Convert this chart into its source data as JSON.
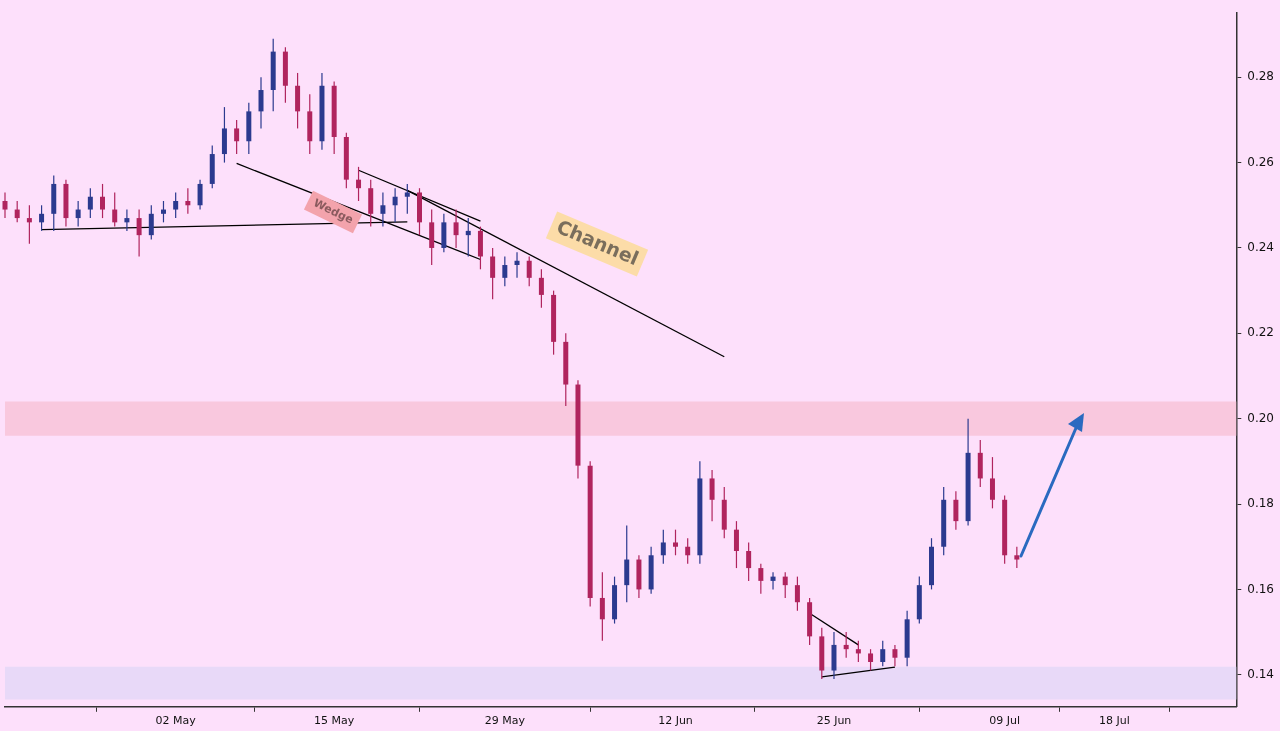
{
  "chart_data": {
    "type": "candlestick",
    "x": [
      "--04-18",
      "--04-19",
      "--04-20",
      "--04-21",
      "--04-22",
      "--04-23",
      "--04-24",
      "--04-25",
      "--04-26",
      "--04-27",
      "--04-28",
      "--04-29",
      "--04-30",
      "--05-01",
      "--05-02",
      "--05-03",
      "--05-04",
      "--05-05",
      "--05-06",
      "--05-07",
      "--05-08",
      "--05-09",
      "--05-10",
      "--05-11",
      "--05-12",
      "--05-13",
      "--05-14",
      "--05-15",
      "--05-16",
      "--05-17",
      "--05-18",
      "--05-19",
      "--05-20",
      "--05-21",
      "--05-22",
      "--05-23",
      "--05-24",
      "--05-25",
      "--05-26",
      "--05-27",
      "--05-28",
      "--05-29",
      "--05-30",
      "--05-31",
      "--06-01",
      "--06-02",
      "--06-03",
      "--06-04",
      "--06-05",
      "--06-06",
      "--06-07",
      "--06-08",
      "--06-09",
      "--06-10",
      "--06-11",
      "--06-12",
      "--06-13",
      "--06-14",
      "--06-15",
      "--06-16",
      "--06-17",
      "--06-18",
      "--06-19",
      "--06-20",
      "--06-21",
      "--06-22",
      "--06-23",
      "--06-24",
      "--06-25",
      "--06-26",
      "--06-27",
      "--06-28",
      "--06-29",
      "--06-30",
      "--07-01",
      "--07-02",
      "--07-03",
      "--07-04",
      "--07-05",
      "--07-06",
      "--07-07",
      "--07-08",
      "--07-09",
      "--07-10"
    ],
    "ohlc": [
      [
        0.251,
        0.253,
        0.247,
        0.249
      ],
      [
        0.249,
        0.251,
        0.246,
        0.247
      ],
      [
        0.247,
        0.25,
        0.241,
        0.246
      ],
      [
        0.246,
        0.25,
        0.244,
        0.248
      ],
      [
        0.248,
        0.257,
        0.244,
        0.255
      ],
      [
        0.255,
        0.256,
        0.245,
        0.247
      ],
      [
        0.247,
        0.251,
        0.245,
        0.249
      ],
      [
        0.249,
        0.254,
        0.247,
        0.252
      ],
      [
        0.252,
        0.255,
        0.247,
        0.249
      ],
      [
        0.249,
        0.253,
        0.245,
        0.246
      ],
      [
        0.246,
        0.249,
        0.244,
        0.247
      ],
      [
        0.247,
        0.249,
        0.238,
        0.243
      ],
      [
        0.243,
        0.25,
        0.242,
        0.248
      ],
      [
        0.248,
        0.251,
        0.246,
        0.249
      ],
      [
        0.249,
        0.253,
        0.247,
        0.251
      ],
      [
        0.251,
        0.254,
        0.248,
        0.25
      ],
      [
        0.25,
        0.256,
        0.249,
        0.255
      ],
      [
        0.255,
        0.264,
        0.254,
        0.262
      ],
      [
        0.262,
        0.273,
        0.26,
        0.268
      ],
      [
        0.268,
        0.27,
        0.262,
        0.265
      ],
      [
        0.265,
        0.274,
        0.262,
        0.272
      ],
      [
        0.272,
        0.28,
        0.268,
        0.277
      ],
      [
        0.277,
        0.289,
        0.272,
        0.286
      ],
      [
        0.286,
        0.287,
        0.274,
        0.278
      ],
      [
        0.278,
        0.281,
        0.268,
        0.272
      ],
      [
        0.272,
        0.276,
        0.262,
        0.265
      ],
      [
        0.265,
        0.281,
        0.263,
        0.278
      ],
      [
        0.278,
        0.279,
        0.262,
        0.266
      ],
      [
        0.266,
        0.267,
        0.254,
        0.256
      ],
      [
        0.256,
        0.259,
        0.251,
        0.254
      ],
      [
        0.254,
        0.256,
        0.245,
        0.248
      ],
      [
        0.248,
        0.253,
        0.245,
        0.25
      ],
      [
        0.25,
        0.254,
        0.246,
        0.252
      ],
      [
        0.252,
        0.255,
        0.248,
        0.253
      ],
      [
        0.253,
        0.254,
        0.243,
        0.246
      ],
      [
        0.246,
        0.249,
        0.236,
        0.24
      ],
      [
        0.24,
        0.248,
        0.239,
        0.246
      ],
      [
        0.246,
        0.249,
        0.24,
        0.243
      ],
      [
        0.243,
        0.247,
        0.238,
        0.244
      ],
      [
        0.244,
        0.245,
        0.235,
        0.238
      ],
      [
        0.238,
        0.24,
        0.228,
        0.233
      ],
      [
        0.233,
        0.238,
        0.231,
        0.236
      ],
      [
        0.236,
        0.239,
        0.233,
        0.237
      ],
      [
        0.237,
        0.238,
        0.231,
        0.233
      ],
      [
        0.233,
        0.235,
        0.226,
        0.229
      ],
      [
        0.229,
        0.23,
        0.215,
        0.218
      ],
      [
        0.218,
        0.22,
        0.203,
        0.208
      ],
      [
        0.208,
        0.209,
        0.186,
        0.189
      ],
      [
        0.189,
        0.19,
        0.156,
        0.158
      ],
      [
        0.158,
        0.164,
        0.148,
        0.153
      ],
      [
        0.153,
        0.163,
        0.152,
        0.161
      ],
      [
        0.161,
        0.175,
        0.157,
        0.167
      ],
      [
        0.167,
        0.168,
        0.158,
        0.16
      ],
      [
        0.16,
        0.17,
        0.159,
        0.168
      ],
      [
        0.168,
        0.174,
        0.166,
        0.171
      ],
      [
        0.171,
        0.174,
        0.168,
        0.17
      ],
      [
        0.17,
        0.172,
        0.166,
        0.168
      ],
      [
        0.168,
        0.19,
        0.166,
        0.186
      ],
      [
        0.186,
        0.188,
        0.176,
        0.181
      ],
      [
        0.181,
        0.184,
        0.172,
        0.174
      ],
      [
        0.174,
        0.176,
        0.165,
        0.169
      ],
      [
        0.169,
        0.171,
        0.162,
        0.165
      ],
      [
        0.165,
        0.166,
        0.159,
        0.162
      ],
      [
        0.162,
        0.164,
        0.16,
        0.163
      ],
      [
        0.163,
        0.164,
        0.158,
        0.161
      ],
      [
        0.161,
        0.163,
        0.155,
        0.157
      ],
      [
        0.157,
        0.158,
        0.147,
        0.149
      ],
      [
        0.149,
        0.151,
        0.139,
        0.141
      ],
      [
        0.141,
        0.15,
        0.139,
        0.147
      ],
      [
        0.147,
        0.15,
        0.144,
        0.146
      ],
      [
        0.146,
        0.148,
        0.143,
        0.145
      ],
      [
        0.145,
        0.146,
        0.141,
        0.143
      ],
      [
        0.143,
        0.148,
        0.142,
        0.146
      ],
      [
        0.146,
        0.147,
        0.142,
        0.144
      ],
      [
        0.144,
        0.155,
        0.142,
        0.153
      ],
      [
        0.153,
        0.163,
        0.152,
        0.161
      ],
      [
        0.161,
        0.172,
        0.16,
        0.17
      ],
      [
        0.17,
        0.184,
        0.168,
        0.181
      ],
      [
        0.181,
        0.183,
        0.174,
        0.176
      ],
      [
        0.176,
        0.2,
        0.175,
        0.192
      ],
      [
        0.192,
        0.195,
        0.184,
        0.186
      ],
      [
        0.186,
        0.191,
        0.179,
        0.181
      ],
      [
        0.181,
        0.182,
        0.166,
        0.168
      ],
      [
        0.168,
        0.17,
        0.165,
        0.167
      ]
    ],
    "colors": [
      "#b0245e",
      "#b0245e",
      "#b0245e",
      "#2b3a8f",
      "#2b3a8f",
      "#b0245e",
      "#2b3a8f",
      "#2b3a8f",
      "#b0245e",
      "#b0245e",
      "#2b3a8f",
      "#b0245e",
      "#2b3a8f",
      "#2b3a8f",
      "#2b3a8f",
      "#b0245e",
      "#2b3a8f",
      "#2b3a8f",
      "#2b3a8f",
      "#b0245e",
      "#2b3a8f",
      "#2b3a8f",
      "#2b3a8f",
      "#b0245e",
      "#b0245e",
      "#b0245e",
      "#2b3a8f",
      "#b0245e",
      "#b0245e",
      "#b0245e",
      "#b0245e",
      "#2b3a8f",
      "#2b3a8f",
      "#2b3a8f",
      "#b0245e",
      "#b0245e",
      "#2b3a8f",
      "#b0245e",
      "#2b3a8f",
      "#b0245e",
      "#b0245e",
      "#2b3a8f",
      "#2b3a8f",
      "#b0245e",
      "#b0245e",
      "#b0245e",
      "#b0245e",
      "#b0245e",
      "#b0245e",
      "#b0245e",
      "#2b3a8f",
      "#2b3a8f",
      "#b0245e",
      "#2b3a8f",
      "#2b3a8f",
      "#b0245e",
      "#b0245e",
      "#2b3a8f",
      "#b0245e",
      "#b0245e",
      "#b0245e",
      "#b0245e",
      "#b0245e",
      "#2b3a8f",
      "#b0245e",
      "#b0245e",
      "#b0245e",
      "#b0245e",
      "#2b3a8f",
      "#b0245e",
      "#b0245e",
      "#b0245e",
      "#2b3a8f",
      "#b0245e",
      "#2b3a8f",
      "#2b3a8f",
      "#2b3a8f",
      "#2b3a8f",
      "#b0245e",
      "#2b3a8f",
      "#b0245e",
      "#b0245e",
      "#b0245e",
      "#b0245e"
    ],
    "series": [
      {
        "type": "line",
        "color": "#000000",
        "x": [
          "--04-21",
          "--05-21"
        ],
        "values": [
          0.2443,
          0.2461
        ]
      },
      {
        "type": "line",
        "color": "#000000",
        "x": [
          "--05-07",
          "--05-27"
        ],
        "values": [
          0.2598,
          0.2373
        ]
      },
      {
        "type": "line",
        "color": "#000000",
        "x": [
          "--05-17",
          "--05-27"
        ],
        "values": [
          0.2582,
          0.2463
        ]
      },
      {
        "type": "line",
        "color": "#000000",
        "x": [
          "--05-21",
          "--06-16"
        ],
        "values": [
          0.2535,
          0.2145
        ]
      },
      {
        "type": "line",
        "color": "#000000",
        "x": [
          "--06-23",
          "--06-27"
        ],
        "values": [
          0.1544,
          0.147
        ]
      },
      {
        "type": "line",
        "color": "#000000",
        "x": [
          "--06-24",
          "--06-30"
        ],
        "values": [
          0.1395,
          0.1418
        ]
      }
    ],
    "bands": [
      {
        "axis": "y",
        "from": 0.196,
        "to": 0.204,
        "color": "#f9c8de"
      },
      {
        "axis": "y",
        "from": 0.1342,
        "to": 0.1419,
        "color": "#e8d9f8"
      }
    ],
    "annotations": [
      "Wedge",
      "Channel"
    ],
    "xlim": [
      "--04-18",
      "--07-28"
    ],
    "xticks": [
      {
        "value": "--05-02",
        "label": "02 May"
      },
      {
        "value": "--05-15",
        "label": "15 May"
      },
      {
        "value": "--05-29",
        "label": "29 May"
      },
      {
        "value": "--06-12",
        "label": "12 Jun"
      },
      {
        "value": "--06-25",
        "label": "25 Jun"
      },
      {
        "value": "--07-09",
        "label": "09 Jul"
      },
      {
        "value": "--07-18",
        "label": "18 Jul"
      }
    ],
    "ylim": [
      0.1325,
      0.295
    ],
    "yticks": [
      0.14,
      0.16,
      0.18,
      {
        "value": 0.2,
        "label": "0.20"
      },
      0.22,
      0.24,
      0.26,
      0.28
    ],
    "grid": false,
    "legend": false,
    "marker": "none",
    "line_style": "solid"
  }
}
